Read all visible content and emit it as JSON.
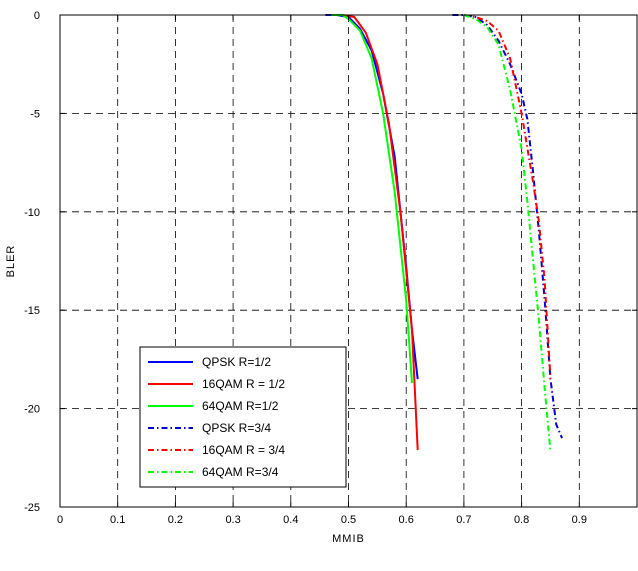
{
  "chart_data": {
    "type": "line",
    "title": "",
    "xlabel": "MMIB",
    "ylabel": "BLER",
    "xlim": [
      0,
      1
    ],
    "ylim": [
      -25,
      0
    ],
    "xticks": [
      "0",
      "0.1",
      "0.2",
      "0.3",
      "0.4",
      "0.5",
      "0.6",
      "0.7",
      "0.8",
      "0.9"
    ],
    "yticks": [
      "0",
      "-5",
      "-10",
      "-15",
      "-20",
      "-25"
    ],
    "grid": true,
    "legend_position": "lower-left",
    "series": [
      {
        "name": "QPSK R=1/2",
        "color": "#0000ff",
        "style": "solid",
        "points": [
          [
            0.46,
            0
          ],
          [
            0.48,
            0
          ],
          [
            0.5,
            -0.1
          ],
          [
            0.52,
            -0.7
          ],
          [
            0.54,
            -1.8
          ],
          [
            0.56,
            -4.0
          ],
          [
            0.58,
            -7.2
          ],
          [
            0.6,
            -12.8
          ],
          [
            0.61,
            -16.0
          ],
          [
            0.62,
            -18.5
          ]
        ]
      },
      {
        "name": "16QAM R = 1/2",
        "color": "#ff0000",
        "style": "solid",
        "points": [
          [
            0.47,
            0
          ],
          [
            0.49,
            0
          ],
          [
            0.51,
            -0.1
          ],
          [
            0.53,
            -0.9
          ],
          [
            0.55,
            -2.5
          ],
          [
            0.57,
            -5.5
          ],
          [
            0.59,
            -10.0
          ],
          [
            0.61,
            -16.0
          ],
          [
            0.62,
            -22.1
          ]
        ]
      },
      {
        "name": "64QAM R=1/2",
        "color": "#00ff00",
        "style": "solid",
        "points": [
          [
            0.47,
            0
          ],
          [
            0.49,
            0
          ],
          [
            0.5,
            -0.2
          ],
          [
            0.52,
            -0.8
          ],
          [
            0.54,
            -2.2
          ],
          [
            0.56,
            -5.0
          ],
          [
            0.58,
            -9.0
          ],
          [
            0.6,
            -14.5
          ],
          [
            0.61,
            -18.7
          ]
        ]
      },
      {
        "name": "QPSK R=3/4",
        "color": "#0000cc",
        "style": "dashdot",
        "points": [
          [
            0.68,
            0
          ],
          [
            0.7,
            0
          ],
          [
            0.72,
            -0.1
          ],
          [
            0.74,
            -0.5
          ],
          [
            0.76,
            -1.3
          ],
          [
            0.78,
            -2.5
          ],
          [
            0.8,
            -4.0
          ],
          [
            0.81,
            -5.3
          ],
          [
            0.82,
            -8.0
          ],
          [
            0.83,
            -11.0
          ],
          [
            0.84,
            -14.5
          ],
          [
            0.85,
            -18.5
          ],
          [
            0.86,
            -20.8
          ],
          [
            0.87,
            -21.5
          ]
        ]
      },
      {
        "name": "16QAM R = 3/4",
        "color": "#ff0000",
        "style": "dashdot",
        "points": [
          [
            0.7,
            0
          ],
          [
            0.72,
            -0.1
          ],
          [
            0.74,
            -0.3
          ],
          [
            0.76,
            -0.8
          ],
          [
            0.78,
            -2.2
          ],
          [
            0.8,
            -5.0
          ],
          [
            0.82,
            -8.5
          ],
          [
            0.83,
            -10.5
          ],
          [
            0.84,
            -13.5
          ],
          [
            0.845,
            -16.0
          ],
          [
            0.85,
            -18.5
          ]
        ]
      },
      {
        "name": "64QAM R=3/4",
        "color": "#00ff00",
        "style": "dashdot",
        "points": [
          [
            0.7,
            0
          ],
          [
            0.72,
            -0.2
          ],
          [
            0.74,
            -0.6
          ],
          [
            0.76,
            -1.5
          ],
          [
            0.78,
            -3.8
          ],
          [
            0.8,
            -6.8
          ],
          [
            0.81,
            -9.5
          ],
          [
            0.82,
            -12.5
          ],
          [
            0.83,
            -15.5
          ],
          [
            0.84,
            -19.0
          ],
          [
            0.85,
            -22.2
          ]
        ]
      }
    ]
  }
}
